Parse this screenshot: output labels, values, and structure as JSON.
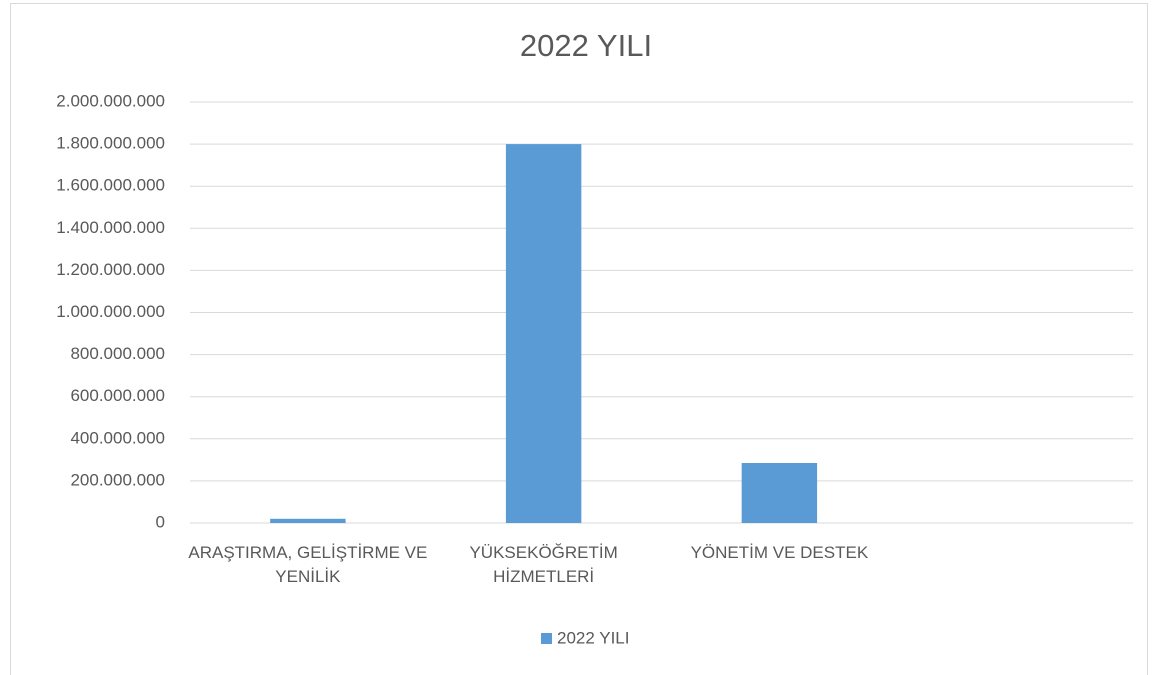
{
  "chart_data": {
    "type": "bar",
    "title": "2022 YILI",
    "categories": [
      "ARAŞTIRMA, GELİŞTİRME VE YENİLİK",
      "YÜKSEKÖĞRETİM HİZMETLERİ",
      "YÖNETİM VE DESTEK",
      null
    ],
    "series": [
      {
        "name": "2022 YILI",
        "color": "#5b9bd5",
        "values": [
          20000000,
          1800000000,
          285000000,
          null
        ]
      }
    ],
    "ylim": [
      0,
      2000000000
    ],
    "yticks": [
      0,
      {
        "value": 200000000,
        "label": "200.000.000"
      },
      {
        "value": 400000000,
        "label": "400.000.000"
      },
      {
        "value": 600000000,
        "label": "600.000.000"
      },
      {
        "value": 800000000,
        "label": "800.000.000"
      },
      {
        "value": 1000000000,
        "label": "1.000.000.000"
      },
      {
        "value": 1200000000,
        "label": "1.200.000.000"
      },
      {
        "value": 1400000000,
        "label": "1.400.000.000"
      },
      {
        "value": 1600000000,
        "label": "1.600.000.000"
      },
      {
        "value": 1800000000,
        "label": "1.800.000.000"
      },
      {
        "value": 2000000000,
        "label": "2.000.000.000"
      }
    ],
    "grid": true,
    "legend": "bottom"
  }
}
